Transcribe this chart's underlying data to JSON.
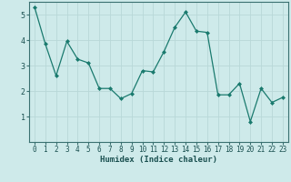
{
  "xlabel": "Humidex (Indice chaleur)",
  "x": [
    0,
    1,
    2,
    3,
    4,
    5,
    6,
    7,
    8,
    9,
    10,
    11,
    12,
    13,
    14,
    15,
    16,
    17,
    18,
    19,
    20,
    21,
    22,
    23
  ],
  "y": [
    5.3,
    3.85,
    2.6,
    3.95,
    3.25,
    3.1,
    2.1,
    2.1,
    1.7,
    1.9,
    2.8,
    2.75,
    3.55,
    4.5,
    5.1,
    4.35,
    4.3,
    1.85,
    1.85,
    2.3,
    0.8,
    2.1,
    1.55,
    1.75
  ],
  "line_color": "#1a7a6e",
  "marker_color": "#1a7a6e",
  "bg_color": "#ceeaea",
  "grid_color": "#b8d8d8",
  "axis_color": "#3a7070",
  "tick_color": "#1a5050",
  "ylim": [
    0,
    5.5
  ],
  "xlim": [
    -0.5,
    23.5
  ],
  "yticks": [
    1,
    2,
    3,
    4,
    5
  ],
  "xticks": [
    0,
    1,
    2,
    3,
    4,
    5,
    6,
    7,
    8,
    9,
    10,
    11,
    12,
    13,
    14,
    15,
    16,
    17,
    18,
    19,
    20,
    21,
    22,
    23
  ],
  "xlabel_fontsize": 6.5,
  "tick_fontsize": 5.5,
  "ytick_fontsize": 6.0
}
